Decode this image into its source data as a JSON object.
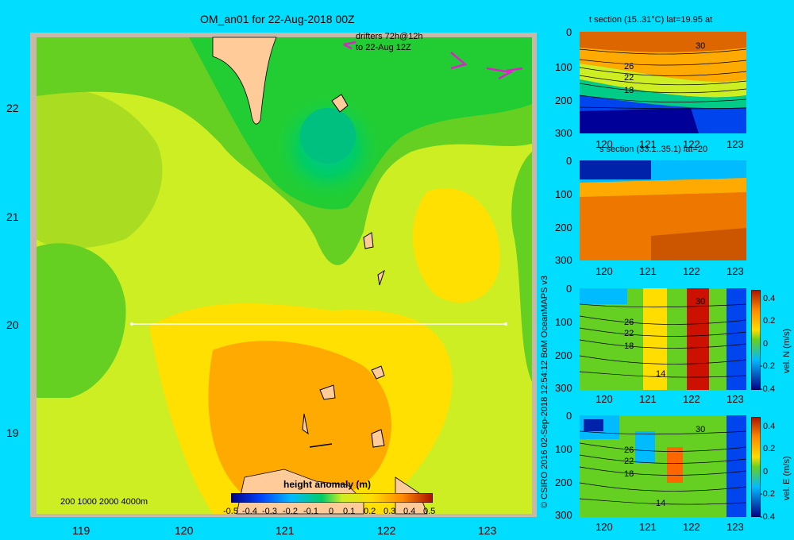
{
  "title": "OM_an01 for 22-Aug-2018 00Z",
  "map": {
    "lat_labels": [
      "22",
      "21",
      "20",
      "19"
    ],
    "lon_labels": [
      "119",
      "120",
      "121",
      "122",
      "123"
    ],
    "drifter_note_line1": "drifters 72h@12h",
    "drifter_note_line2": "to 22-Aug 12Z",
    "depth_legend": "200  1000  2000  4000m"
  },
  "colorbar": {
    "title": "height anomaly  (m)",
    "ticks": [
      "-0.5",
      "-0.4",
      "-0.3",
      "-0.2",
      "-0.1",
      "0",
      "0.1",
      "0.2",
      "0.3",
      "0.4",
      "0.5"
    ]
  },
  "credit": "© CSIRO 2016   02-Sep-2018 12:54:12 BoM OceanMAPS v3",
  "sections": [
    {
      "title": "t section (15..31°C) lat=19.95 at",
      "y_ticks": [
        "0",
        "100",
        "200",
        "300"
      ],
      "x_ticks": [
        "120",
        "121",
        "122",
        "123"
      ],
      "contours": [
        "30",
        "26",
        "22",
        "18"
      ],
      "side_label": "",
      "cbar": []
    },
    {
      "title": "s section (33.1..35.1) lat=20",
      "y_ticks": [
        "0",
        "100",
        "200",
        "300"
      ],
      "x_ticks": [
        "120",
        "121",
        "122",
        "123"
      ],
      "contours": [],
      "side_label": "",
      "cbar": []
    },
    {
      "title": "",
      "y_ticks": [
        "0",
        "100",
        "200",
        "300"
      ],
      "x_ticks": [
        "120",
        "121",
        "122",
        "123"
      ],
      "contours": [
        "30",
        "26",
        "22",
        "18",
        "14"
      ],
      "side_label": "vel. N  (m/s)",
      "cbar": [
        "0.4",
        "0.2",
        "0",
        "-0.2",
        "-0.4"
      ]
    },
    {
      "title": "",
      "y_ticks": [
        "0",
        "100",
        "200",
        "300"
      ],
      "x_ticks": [
        "120",
        "121",
        "122",
        "123"
      ],
      "contours": [
        "30",
        "26",
        "22",
        "18",
        "14"
      ],
      "side_label": "vel. E  (m/s)",
      "cbar": [
        "0.4",
        "0.2",
        "0",
        "-0.2",
        "-0.4"
      ]
    }
  ],
  "colors": {
    "background": "#00ddff",
    "land": "#ffcc99",
    "frame": "#c8b8a8"
  }
}
